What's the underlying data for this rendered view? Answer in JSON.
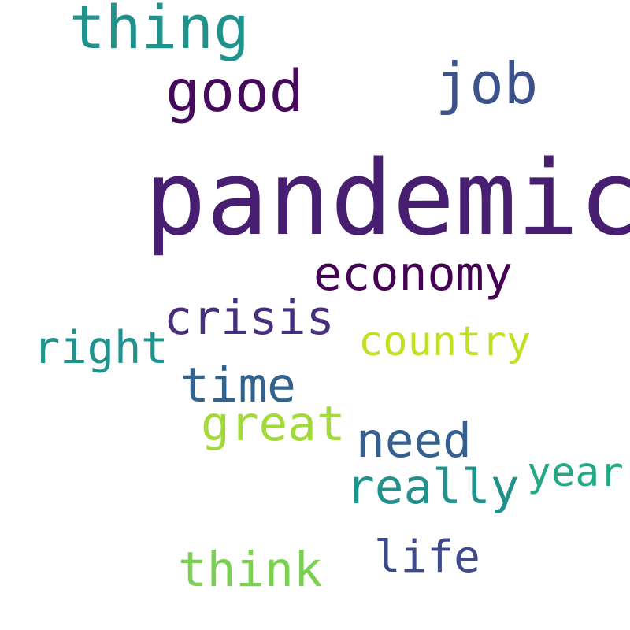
{
  "words": [
    {
      "text": "pandemic",
      "color": "#481f70"
    },
    {
      "text": "thing",
      "color": "#20928c"
    },
    {
      "text": "good",
      "color": "#450a5c"
    },
    {
      "text": "job",
      "color": "#3b528b"
    },
    {
      "text": "economy",
      "color": "#440154"
    },
    {
      "text": "crisis",
      "color": "#472f7d"
    },
    {
      "text": "country",
      "color": "#c2df23"
    },
    {
      "text": "right",
      "color": "#1f948c"
    },
    {
      "text": "time",
      "color": "#33638d"
    },
    {
      "text": "great",
      "color": "#a2da37"
    },
    {
      "text": "need",
      "color": "#355f8d"
    },
    {
      "text": "year",
      "color": "#22a884"
    },
    {
      "text": "really",
      "color": "#21918c"
    },
    {
      "text": "think",
      "color": "#7ad151"
    },
    {
      "text": "life",
      "color": "#3e4a89"
    }
  ]
}
